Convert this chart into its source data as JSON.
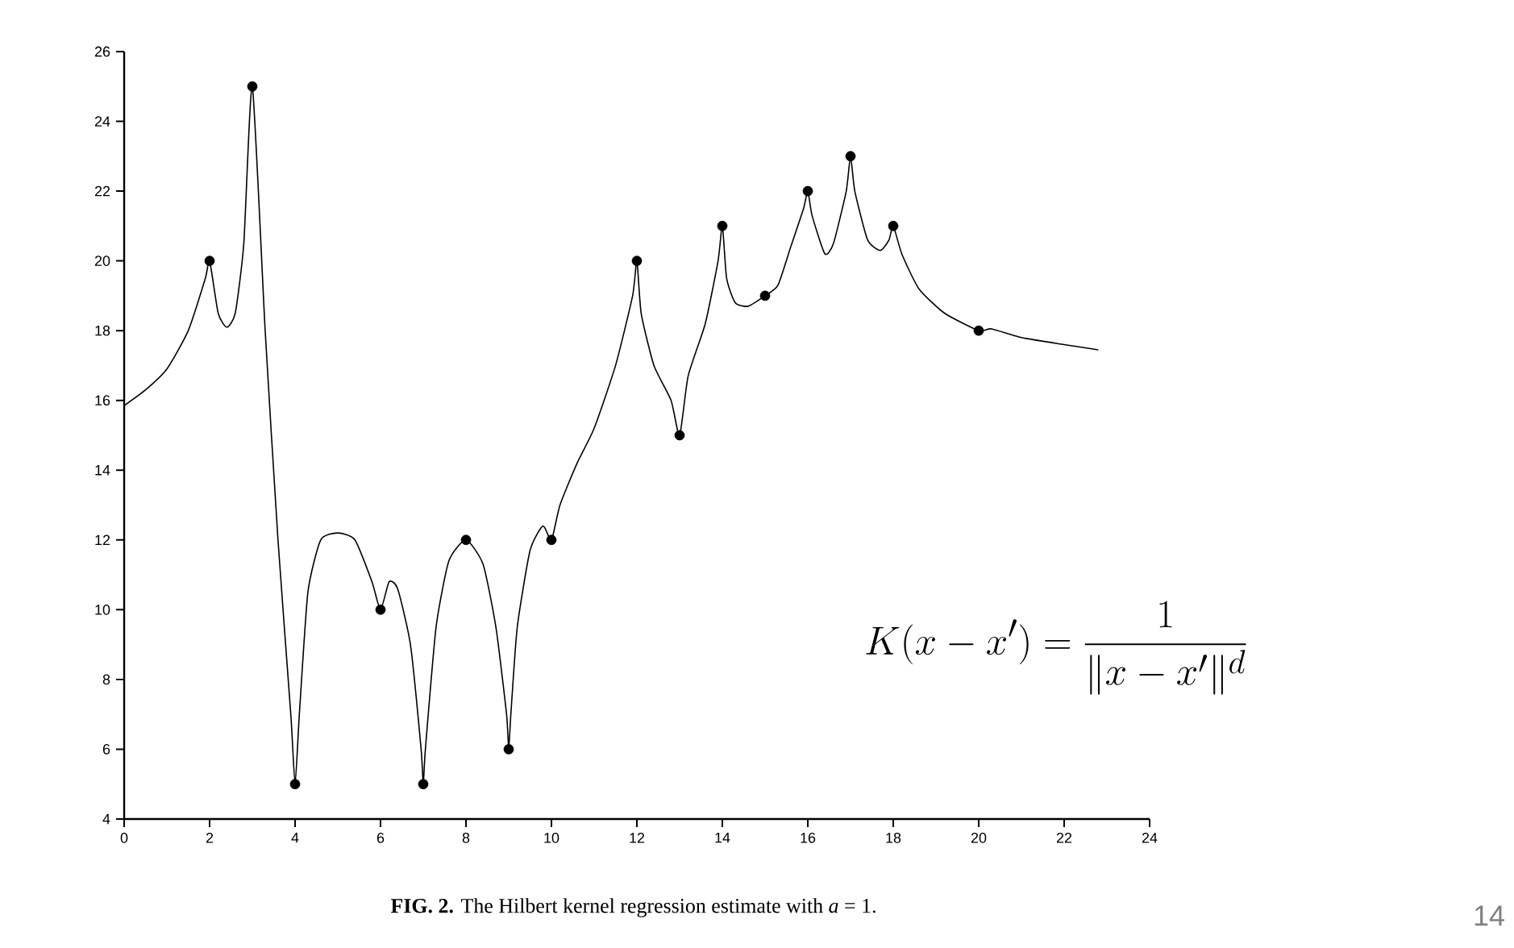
{
  "chart_data": {
    "type": "scatter",
    "series": [
      {
        "type": "line",
        "color": "#000000",
        "marker": "none",
        "line_style": "solid",
        "x": [
          0,
          0.5,
          1,
          1.5,
          1.9,
          2,
          2.2,
          2.4,
          2.6,
          2.8,
          3,
          3.3,
          3.6,
          3.9,
          4,
          4.1,
          4.3,
          4.6,
          5,
          5.4,
          5.8,
          6,
          6.2,
          6.4,
          6.7,
          6.95,
          7,
          7.05,
          7.3,
          7.6,
          8,
          8.4,
          8.7,
          8.95,
          9,
          9.05,
          9.2,
          9.5,
          9.8,
          10,
          10.2,
          10.6,
          11,
          11.5,
          11.9,
          12,
          12.1,
          12.4,
          12.8,
          13,
          13.2,
          13.6,
          13.9,
          14,
          14.1,
          14.3,
          14.6,
          15,
          15.3,
          15.6,
          15.9,
          16,
          16.1,
          16.4,
          16.6,
          16.9,
          17,
          17.1,
          17.4,
          17.7,
          17.9,
          18,
          18.2,
          18.6,
          19.2,
          20,
          20.3,
          21,
          22,
          22.8
        ],
        "values": [
          15.85,
          16.3,
          16.9,
          18,
          19.5,
          20,
          18.5,
          18.1,
          18.5,
          20.5,
          25,
          18,
          12,
          7,
          5,
          7,
          10.5,
          12,
          12.2,
          12,
          10.8,
          10,
          10.8,
          10.6,
          9,
          6,
          5,
          6,
          9.5,
          11.4,
          12,
          11.3,
          9.5,
          7,
          6,
          7,
          9.5,
          11.7,
          12.4,
          12,
          13,
          14.2,
          15.2,
          17,
          19,
          20,
          18.5,
          17,
          16,
          15,
          16.7,
          18.2,
          20,
          21,
          19.5,
          18.8,
          18.7,
          19,
          19.3,
          20.4,
          21.5,
          22,
          21.3,
          20.2,
          20.5,
          22,
          23,
          22,
          20.6,
          20.3,
          20.6,
          21,
          20.2,
          19.2,
          18.5,
          18,
          18.05,
          17.8,
          17.6,
          17.45
        ]
      },
      {
        "color": "#000000",
        "marker": "circle",
        "x": [
          2,
          3,
          4,
          6,
          7,
          8,
          9,
          10,
          12,
          13,
          14,
          15,
          16,
          17,
          18,
          20
        ],
        "values": [
          20,
          25,
          5,
          10,
          5,
          12,
          6,
          12,
          20,
          15,
          21,
          19,
          22,
          23,
          21,
          18
        ]
      }
    ],
    "xlim": [
      0,
      24
    ],
    "ylim": [
      4,
      26
    ],
    "xticks": [
      0,
      2,
      4,
      6,
      8,
      10,
      12,
      14,
      16,
      18,
      20,
      22,
      24
    ],
    "yticks": [
      4,
      6,
      8,
      10,
      12,
      14,
      16,
      18,
      20,
      22,
      24,
      26
    ],
    "grid": false,
    "annotations": [
      "**FIG. 2.** The Hilbert kernel regression estimate with *a* = 1.",
      "K(x-x')=\\frac{1}{\\|x-x'\\|^{d}}",
      "14"
    ]
  }
}
